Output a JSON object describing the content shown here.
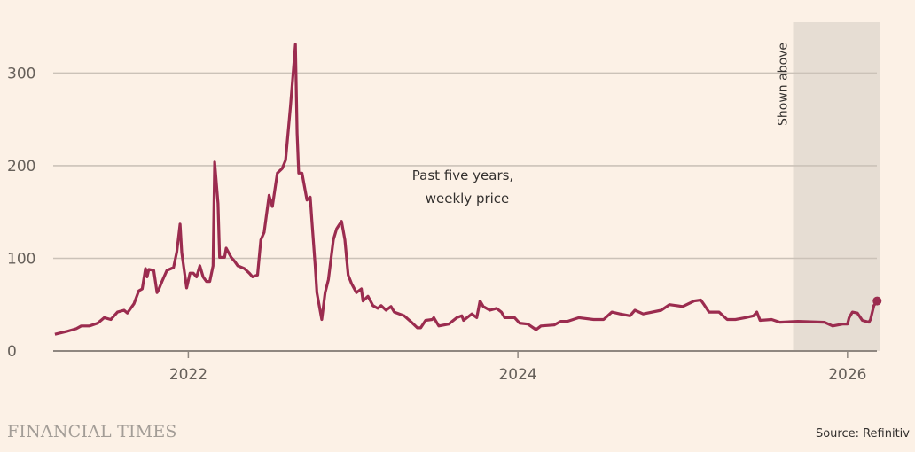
{
  "chart_data": {
    "type": "line",
    "annotation": [
      "Past five years,",
      "weekly price"
    ],
    "shaded_label": "Shown above",
    "shaded_range": [
      2025.67,
      2026.2
    ],
    "xlim": [
      2021.18,
      2026.2
    ],
    "ylim": [
      0,
      355
    ],
    "x_ticks": [
      2022,
      2024,
      2026
    ],
    "x_tick_labels": [
      "2022",
      "2024",
      "2026"
    ],
    "y_ticks": [
      0,
      100,
      200,
      300
    ],
    "y_tick_labels": [
      "0",
      "100",
      "200",
      "300"
    ],
    "grid": "horizontal",
    "colors": {
      "line": "#9b2c4f",
      "grid": "#cbc2b8",
      "shade": "#e6ddd3",
      "background": "#fcf1e6"
    },
    "series": [
      {
        "x": [
          2021.19,
          2021.26,
          2021.32,
          2021.35,
          2021.4,
          2021.45,
          2021.49,
          2021.53,
          2021.57,
          2021.61,
          2021.63,
          2021.67,
          2021.7,
          2021.72,
          2021.74,
          2021.75,
          2021.76,
          2021.79,
          2021.81,
          2021.82,
          2021.84,
          2021.87,
          2021.91,
          2021.93,
          2021.95,
          2021.96,
          2021.99,
          2022.01,
          2022.03,
          2022.05,
          2022.07,
          2022.09,
          2022.11,
          2022.13,
          2022.15,
          2022.16,
          2022.18,
          2022.19,
          2022.22,
          2022.23,
          2022.26,
          2022.28,
          2022.3,
          2022.34,
          2022.37,
          2022.39,
          2022.42,
          2022.44,
          2022.46,
          2022.49,
          2022.51,
          2022.54,
          2022.57,
          2022.59,
          2022.62,
          2022.65,
          2022.66,
          2022.67,
          2022.69,
          2022.72,
          2022.74,
          2022.75,
          2022.77,
          2022.78,
          2022.81,
          2022.83,
          2022.85,
          2022.88,
          2022.9,
          2022.93,
          2022.95,
          2022.97,
          2022.99,
          2023.02,
          2023.05,
          2023.06,
          2023.09,
          2023.12,
          2023.15,
          2023.17,
          2023.2,
          2023.23,
          2023.25,
          2023.31,
          2023.36,
          2023.39,
          2023.41,
          2023.44,
          2023.48,
          2023.49,
          2023.52,
          2023.58,
          2023.63,
          2023.66,
          2023.67,
          2023.72,
          2023.75,
          2023.77,
          2023.79,
          2023.83,
          2023.87,
          2023.9,
          2023.92,
          2023.98,
          2024.01,
          2024.06,
          2024.11,
          2024.14,
          2024.22,
          2024.26,
          2024.3,
          2024.37,
          2024.46,
          2024.52,
          2024.57,
          2024.62,
          2024.68,
          2024.71,
          2024.76,
          2024.87,
          2024.92,
          2025.0,
          2025.07,
          2025.11,
          2025.13,
          2025.16,
          2025.22,
          2025.27,
          2025.32,
          2025.38,
          2025.43,
          2025.45,
          2025.47,
          2025.54,
          2025.59,
          2025.7,
          2025.86,
          2025.91,
          2025.97,
          2026.0,
          2026.01,
          2026.03,
          2026.06,
          2026.09,
          2026.13,
          2026.14,
          2026.16,
          2026.18
        ],
        "y": [
          18,
          21,
          24,
          27,
          27,
          30,
          36,
          34,
          42,
          44,
          41,
          51,
          65,
          67,
          89,
          80,
          88,
          87,
          63,
          66,
          75,
          87,
          90,
          107,
          137,
          106,
          68,
          84,
          84,
          80,
          92,
          80,
          75,
          75,
          92,
          204,
          159,
          101,
          101,
          111,
          101,
          97,
          92,
          89,
          84,
          80,
          82,
          120,
          128,
          168,
          156,
          192,
          197,
          206,
          264,
          331,
          235,
          192,
          192,
          163,
          166,
          140,
          92,
          63,
          34,
          63,
          77,
          120,
          132,
          140,
          120,
          82,
          73,
          63,
          67,
          54,
          59,
          49,
          46,
          49,
          44,
          48,
          42,
          38,
          30,
          25,
          25,
          33,
          34,
          36,
          27,
          29,
          36,
          38,
          33,
          40,
          36,
          54,
          48,
          44,
          46,
          42,
          36,
          36,
          30,
          29,
          23,
          27,
          28,
          32,
          32,
          36,
          34,
          34,
          42,
          40,
          38,
          44,
          40,
          44,
          50,
          48,
          54,
          55,
          50,
          42,
          42,
          34,
          34,
          36,
          38,
          42,
          33,
          34,
          31,
          32,
          31,
          27,
          29,
          29,
          36,
          42,
          41,
          33,
          31,
          34,
          49,
          54
        ]
      }
    ]
  },
  "footer": {
    "brand": "FINANCIAL TIMES",
    "source": "Source: Refinitiv"
  }
}
